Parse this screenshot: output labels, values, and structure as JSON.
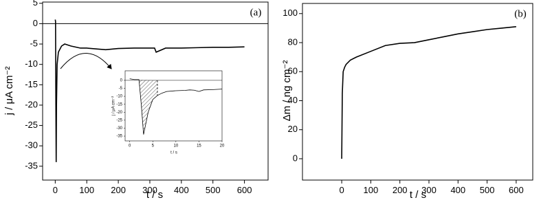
{
  "chart_data": [
    {
      "type": "line",
      "title": "(a)",
      "x_label": "t / s",
      "y_label": "j / μA cm⁻²",
      "xlim": [
        -40,
        675
      ],
      "ylim": [
        -38.4,
        5.3
      ],
      "xticks": [
        0,
        100,
        200,
        300,
        400,
        500,
        600
      ],
      "yticks": [
        5,
        0,
        -5,
        -10,
        -15,
        -20,
        -25,
        -30,
        -35
      ],
      "zero_line": true,
      "series": [
        {
          "color": "#000000",
          "x": [
            0,
            1,
            2,
            3,
            4,
            6,
            10,
            20,
            30,
            50,
            80,
            100,
            130,
            160,
            200,
            250,
            300,
            315,
            320,
            350,
            400,
            450,
            500,
            550,
            600
          ],
          "values": [
            1,
            0.5,
            -20,
            -34,
            -20,
            -10,
            -7,
            -5.5,
            -5,
            -5.5,
            -6,
            -6,
            -6.2,
            -6.4,
            -6.1,
            -6,
            -6,
            -6,
            -7,
            -6,
            -6,
            -5.9,
            -5.8,
            -5.8,
            -5.7
          ]
        }
      ]
    },
    {
      "type": "line",
      "x_label": "t / s",
      "y_label": "j / μA cm⁻²",
      "xlim": [
        -1,
        20
      ],
      "ylim": [
        -38,
        6
      ],
      "xticks": [
        0,
        5,
        10,
        15,
        20
      ],
      "yticks": [
        0,
        -5,
        -10,
        -15,
        -20,
        -25,
        -30,
        -35
      ],
      "zero_line": true,
      "series": [
        {
          "color": "#000000",
          "x": [
            0,
            1,
            2,
            2.5,
            3,
            4,
            5,
            6,
            7,
            8,
            10,
            12,
            13,
            14,
            15,
            16,
            18,
            20
          ],
          "values": [
            1,
            0.5,
            0.5,
            -15,
            -34,
            -20,
            -12,
            -9.5,
            -8,
            -7,
            -6.5,
            -6.3,
            -6,
            -6.2,
            -7,
            -6,
            -5.8,
            -5.5
          ]
        }
      ]
    },
    {
      "type": "line",
      "title": "(b)",
      "x_label": "t / s",
      "y_label": "Δm / ng cm⁻²",
      "xlim": [
        -135,
        657
      ],
      "ylim": [
        -14.7,
        107
      ],
      "xticks": [
        0,
        100,
        200,
        300,
        400,
        500,
        600
      ],
      "yticks": [
        0,
        20,
        40,
        60,
        80,
        100
      ],
      "zero_line": false,
      "series": [
        {
          "color": "#000000",
          "x": [
            0,
            2,
            5,
            10,
            15,
            30,
            50,
            100,
            150,
            200,
            250,
            300,
            350,
            400,
            450,
            500,
            550,
            600
          ],
          "values": [
            0,
            45,
            60,
            63,
            65,
            68,
            70,
            74,
            78,
            79.5,
            80,
            82,
            84,
            86,
            87.5,
            89,
            90,
            91
          ]
        }
      ]
    }
  ]
}
